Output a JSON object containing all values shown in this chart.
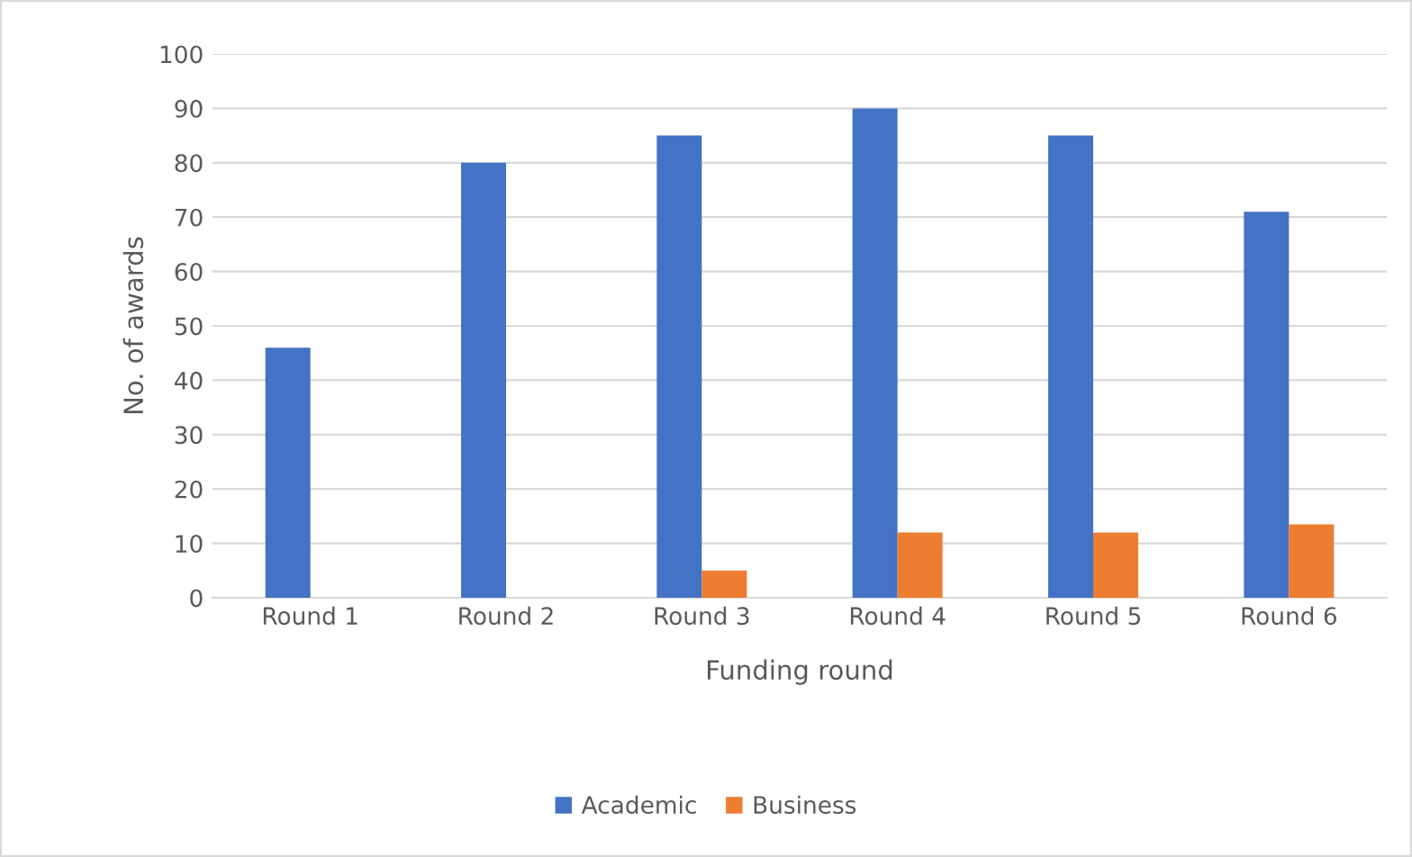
{
  "chart_data": {
    "type": "bar",
    "xlabel": "Funding round",
    "ylabel": "No. of awards",
    "categories": [
      "Round 1",
      "Round 2",
      "Round 3",
      "Round 4",
      "Round 5",
      "Round 6"
    ],
    "series": [
      {
        "name": "Academic",
        "color": "#4472c4",
        "values": [
          46,
          80,
          85,
          90,
          85,
          71
        ]
      },
      {
        "name": "Business",
        "color": "#ed7d31",
        "values": [
          0,
          0,
          5,
          12,
          12,
          13.5
        ]
      }
    ],
    "ylim": [
      0,
      100
    ],
    "yticks": [
      0,
      10,
      20,
      30,
      40,
      50,
      60,
      70,
      80,
      90,
      100
    ],
    "grid": "y",
    "legend": "bottom"
  }
}
